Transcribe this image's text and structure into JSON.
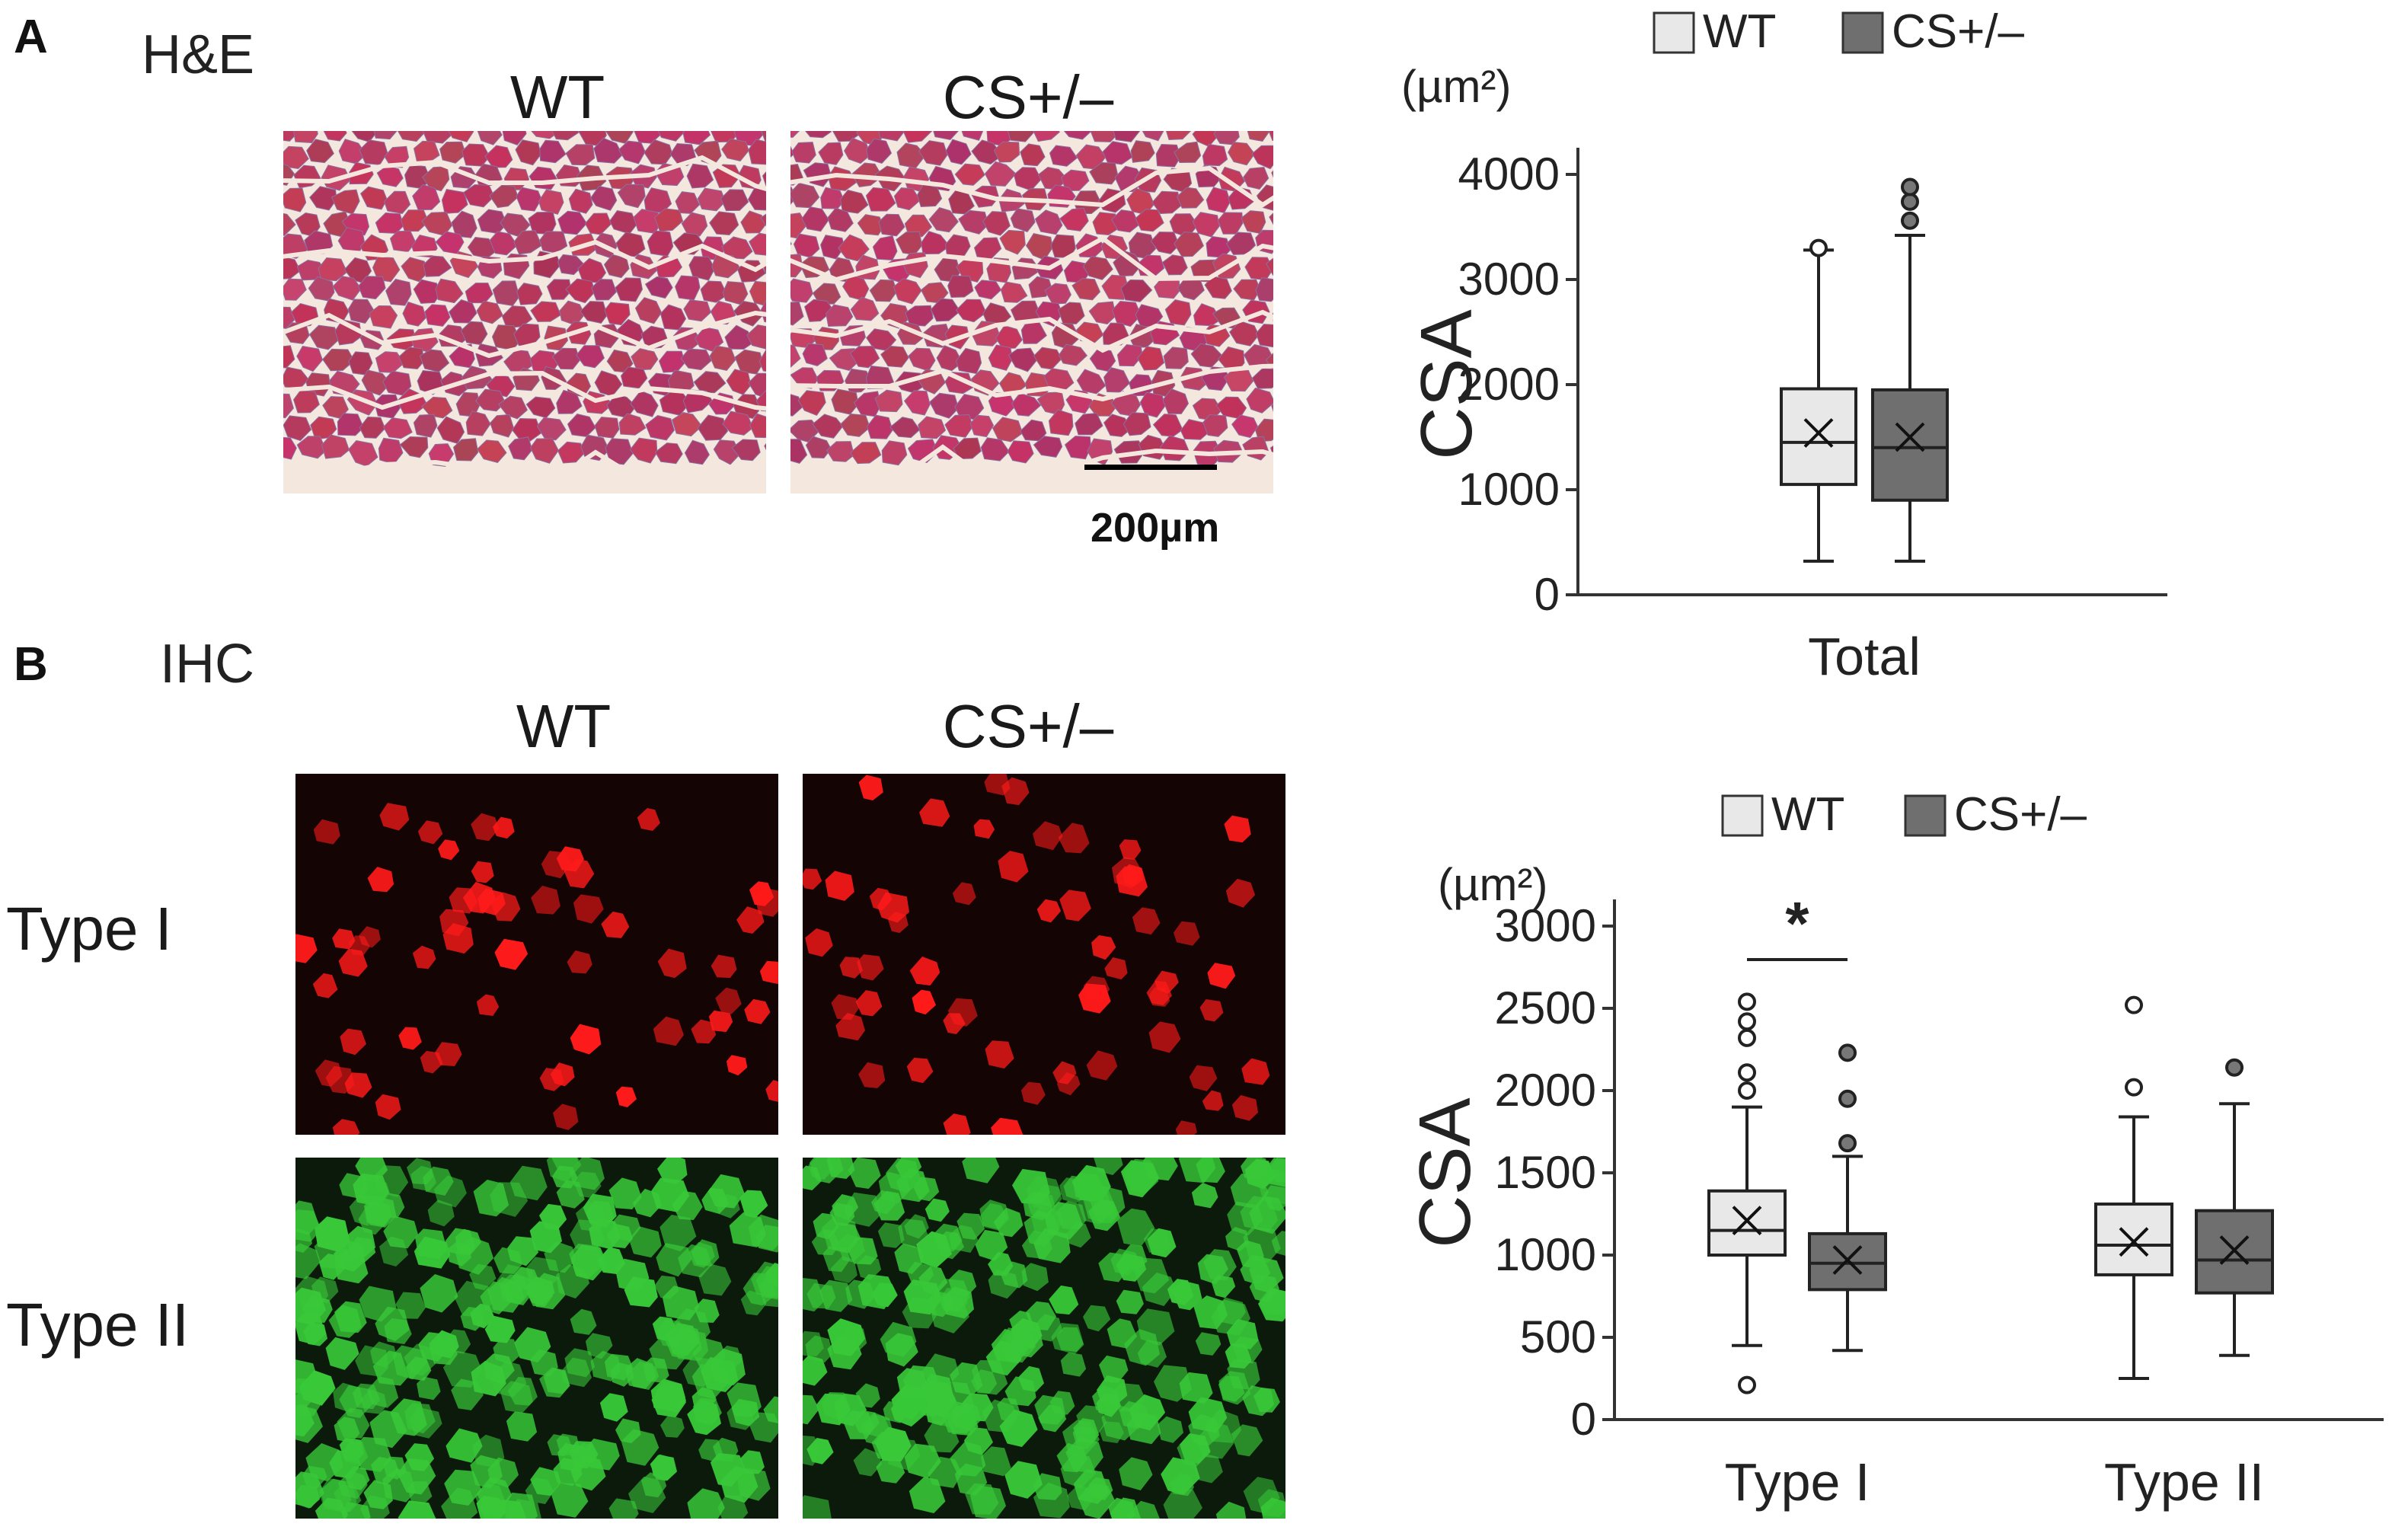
{
  "panelA": {
    "letter": "A",
    "method": "H&E",
    "col_wt": "WT",
    "col_cs": "CS+/–",
    "scale_bar": "200µm"
  },
  "panelB": {
    "letter": "B",
    "method": "IHC",
    "col_wt": "WT",
    "col_cs": "CS+/–",
    "row_type1": "Type I",
    "row_type2": "Type II"
  },
  "colors": {
    "he_stain": "#c4406a",
    "he_background": "#f3e7de",
    "type1_fluor": "#ff1a1a",
    "type2_fluor": "#38c838",
    "wt_box": "#e8e8e8",
    "cs_box": "#6f6f6f"
  },
  "chart_data": [
    {
      "type": "box",
      "unit_label": "(µm²)",
      "ylabel": "CSA",
      "ylim": [
        0,
        4000
      ],
      "yticks": [
        0,
        1000,
        2000,
        3000,
        4000
      ],
      "categories": [
        "Total"
      ],
      "legend": [
        "WT",
        "CS+/–"
      ],
      "legend_position": "top",
      "series": [
        {
          "name": "WT",
          "color": "#e8e8e8",
          "boxes": [
            {
              "category": "Total",
              "whisker_low": 320,
              "q1": 1050,
              "median": 1450,
              "q3": 1960,
              "whisker_high": 3280,
              "mean": 1540,
              "outliers": [
                3300
              ]
            }
          ]
        },
        {
          "name": "CS+/–",
          "color": "#6f6f6f",
          "boxes": [
            {
              "category": "Total",
              "whisker_low": 320,
              "q1": 900,
              "median": 1400,
              "q3": 1950,
              "whisker_high": 3420,
              "mean": 1500,
              "outliers": [
                3560,
                3740,
                3880
              ]
            }
          ]
        }
      ],
      "annotations": []
    },
    {
      "type": "box",
      "unit_label": "(µm²)",
      "ylabel": "CSA",
      "ylim": [
        0,
        3000
      ],
      "yticks": [
        0,
        500,
        1000,
        1500,
        2000,
        2500,
        3000
      ],
      "categories": [
        "Type I",
        "Type II"
      ],
      "legend": [
        "WT",
        "CS+/–"
      ],
      "legend_position": "top",
      "series": [
        {
          "name": "WT",
          "color": "#e8e8e8",
          "boxes": [
            {
              "category": "Type I",
              "whisker_low": 450,
              "q1": 1000,
              "median": 1150,
              "q3": 1390,
              "whisker_high": 1900,
              "mean": 1210,
              "outliers": [
                210,
                2000,
                2110,
                2320,
                2420,
                2540
              ]
            },
            {
              "category": "Type II",
              "whisker_low": 250,
              "q1": 880,
              "median": 1060,
              "q3": 1310,
              "whisker_high": 1840,
              "mean": 1080,
              "outliers": [
                2020,
                2520
              ]
            }
          ]
        },
        {
          "name": "CS+/–",
          "color": "#6f6f6f",
          "boxes": [
            {
              "category": "Type I",
              "whisker_low": 420,
              "q1": 790,
              "median": 950,
              "q3": 1130,
              "whisker_high": 1600,
              "mean": 970,
              "outliers": [
                1680,
                1950,
                2230
              ]
            },
            {
              "category": "Type II",
              "whisker_low": 390,
              "q1": 770,
              "median": 970,
              "q3": 1270,
              "whisker_high": 1920,
              "mean": 1030,
              "outliers": [
                2140
              ]
            }
          ]
        }
      ],
      "annotations": [
        {
          "text": "*",
          "between": "Type I"
        }
      ]
    }
  ]
}
